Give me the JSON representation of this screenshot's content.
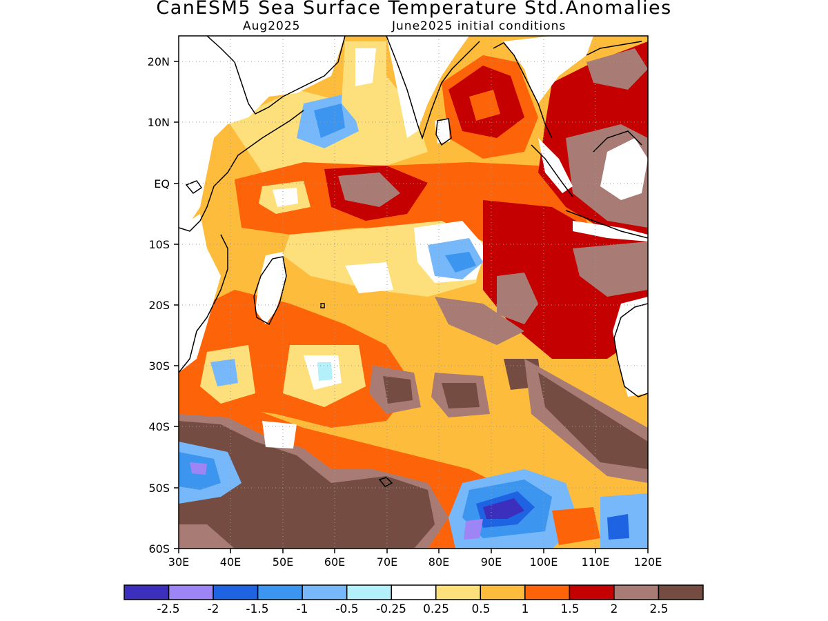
{
  "title": "CanESM5 Sea Surface Temperature Std.Anomalies",
  "subtitle_left": "Aug2025",
  "subtitle_right": "June2025 initial conditions",
  "map": {
    "lon_range": [
      30,
      120
    ],
    "lat_range": [
      -60,
      24
    ],
    "lon_ticks": [
      "30E",
      "40E",
      "50E",
      "60E",
      "70E",
      "80E",
      "90E",
      "100E",
      "110E",
      "120E"
    ],
    "lat_ticks": [
      "20N",
      "10N",
      "EQ",
      "10S",
      "20S",
      "30S",
      "40S",
      "50S",
      "60S"
    ],
    "grid": "dotted",
    "coastlines": true
  },
  "colorbar": {
    "colors": [
      "#3c2fbe",
      "#9d85f6",
      "#1e63e2",
      "#3c95ee",
      "#77b8fa",
      "#b3f0fa",
      "#ffffff",
      "#fde07c",
      "#fdbc3c",
      "#fd640a",
      "#c40000",
      "#a87c74",
      "#744c42"
    ],
    "labels": [
      "-2.5",
      "-2",
      "-1.5",
      "-1",
      "-0.5",
      "-0.25",
      "0.25",
      "0.5",
      "1",
      "1.5",
      "2",
      "2.5"
    ]
  }
}
